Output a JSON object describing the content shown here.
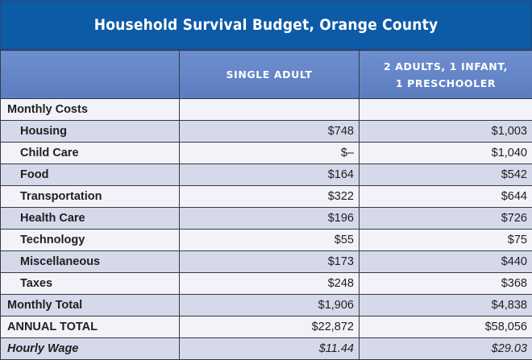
{
  "title": "Household Survival Budget, Orange County",
  "columns": {
    "single_adult": "SINGLE ADULT",
    "family_line1": "2 ADULTS, 1 INFANT,",
    "family_line2": "1 PRESCHOOLER"
  },
  "section_label": "Monthly Costs",
  "rows": [
    {
      "label": "Housing",
      "single": "$748",
      "family": "$1,003"
    },
    {
      "label": "Child Care",
      "single": "$–",
      "family": "$1,040"
    },
    {
      "label": "Food",
      "single": "$164",
      "family": "$542"
    },
    {
      "label": "Transportation",
      "single": "$322",
      "family": "$644"
    },
    {
      "label": "Health Care",
      "single": "$196",
      "family": "$726"
    },
    {
      "label": "Technology",
      "single": "$55",
      "family": "$75"
    },
    {
      "label": "Miscellaneous",
      "single": "$173",
      "family": "$440"
    },
    {
      "label": "Taxes",
      "single": "$248",
      "family": "$368"
    }
  ],
  "monthly_total": {
    "label": "Monthly Total",
    "single": "$1,906",
    "family": "$4,838"
  },
  "annual_total": {
    "label": "ANNUAL TOTAL",
    "single": "$22,872",
    "family": "$58,056"
  },
  "hourly_wage": {
    "label": "Hourly Wage",
    "single": "$11.44",
    "family": "$29.03"
  },
  "colors": {
    "title_bg": "#0d5aa6",
    "header_bg": "#6584c6",
    "row_light": "#f2f2f8",
    "row_dark": "#d6d9ea"
  }
}
